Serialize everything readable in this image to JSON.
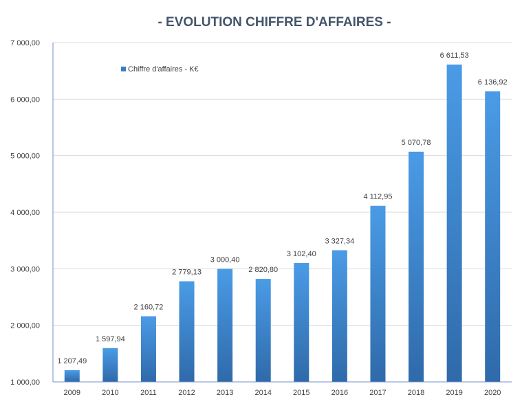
{
  "chart_data": {
    "type": "bar",
    "title": "- EVOLUTION CHIFFRE D'AFFAIRES -",
    "categories": [
      "2009",
      "2010",
      "2011",
      "2012",
      "2013",
      "2014",
      "2015",
      "2016",
      "2017",
      "2018",
      "2019",
      "2020"
    ],
    "series": [
      {
        "name": "Chiffre d'affaires - K€",
        "values": [
          1207.49,
          1597.94,
          2160.72,
          2779.13,
          3000.4,
          2820.8,
          3102.4,
          3327.34,
          4112.95,
          5070.78,
          6611.53,
          6136.92
        ],
        "labels": [
          "1 207,49",
          "1 597,94",
          "2 160,72",
          "2 779,13",
          "3 000,40",
          "2 820,80",
          "3 102,40",
          "3 327,34",
          "4 112,95",
          "5 070,78",
          "6 611,53",
          "6 136,92"
        ],
        "color": "#3a7cc4"
      }
    ],
    "ylim": [
      1000,
      7000
    ],
    "yticks": [
      1000,
      2000,
      3000,
      4000,
      5000,
      6000,
      7000
    ],
    "ytick_labels": [
      "1 000,00",
      "2 000,00",
      "3 000,00",
      "4 000,00",
      "5 000,00",
      "6 000,00",
      "7 000,00"
    ],
    "grid": true,
    "legend_position": "top-left",
    "colors": {
      "bar_top": "#4a9be6",
      "bar_bottom": "#2f6aaa",
      "title": "#44546a"
    }
  }
}
